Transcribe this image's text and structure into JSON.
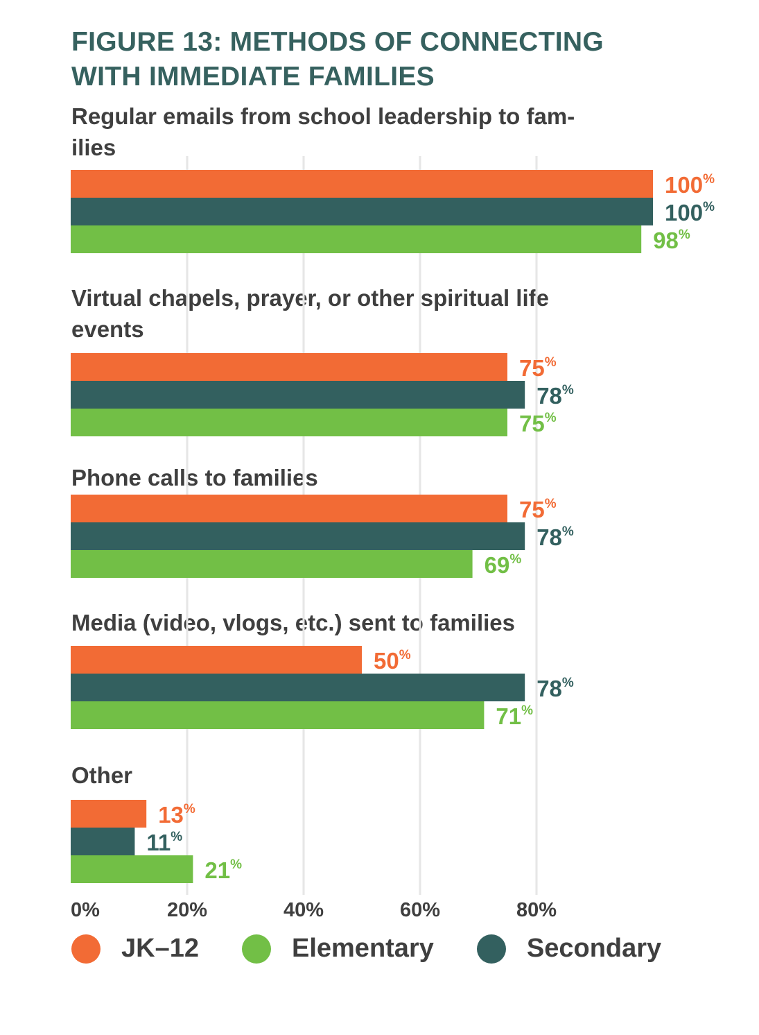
{
  "title_lines": [
    "FIGURE 13: METHODS OF CONNECTING",
    "WITH IMMEDIATE FAMILIES"
  ],
  "colors": {
    "title": "#36615F",
    "text": "#3F3F3F",
    "grid": "#E6E6E6",
    "JK-12": "#F26B35",
    "Secondary": "#33605F",
    "Elementary": "#72BF46"
  },
  "chart_data": {
    "type": "bar",
    "orientation": "horizontal",
    "title": "FIGURE 13: METHODS OF CONNECTING WITH IMMEDIATE FAMILIES",
    "categories": [
      "Regular emails from school leadership to families",
      "Virtual chapels, prayer, or other spiritual life events",
      "Phone calls to families",
      "Media (video, vlogs, etc.) sent to families",
      "Other"
    ],
    "category_label_lines": [
      [
        "Regular emails from school leadership to fam-",
        "ilies"
      ],
      [
        "Virtual chapels, prayer, or other spiritual life",
        "events"
      ],
      [
        "Phone calls to families"
      ],
      [
        "Media (video, vlogs, etc.) sent to families"
      ],
      [
        "Other"
      ]
    ],
    "series": [
      {
        "name": "JK–12",
        "key": "JK-12",
        "values": [
          100,
          75,
          75,
          50,
          13
        ]
      },
      {
        "name": "Secondary",
        "key": "Secondary",
        "values": [
          100,
          78,
          78,
          78,
          11
        ]
      },
      {
        "name": "Elementary",
        "key": "Elementary",
        "values": [
          98,
          75,
          69,
          71,
          21
        ]
      }
    ],
    "value_suffix": "%",
    "xlim": [
      0,
      100
    ],
    "xticks": [
      0,
      20,
      40,
      60,
      80
    ],
    "xtick_labels": [
      "0%",
      "20%",
      "40%",
      "60%",
      "80%"
    ],
    "grid": true,
    "legend": {
      "position": "bottom",
      "entries": [
        {
          "label": "JK–12",
          "key": "JK-12"
        },
        {
          "label": "Elementary",
          "key": "Elementary"
        },
        {
          "label": "Secondary",
          "key": "Secondary"
        }
      ]
    }
  }
}
